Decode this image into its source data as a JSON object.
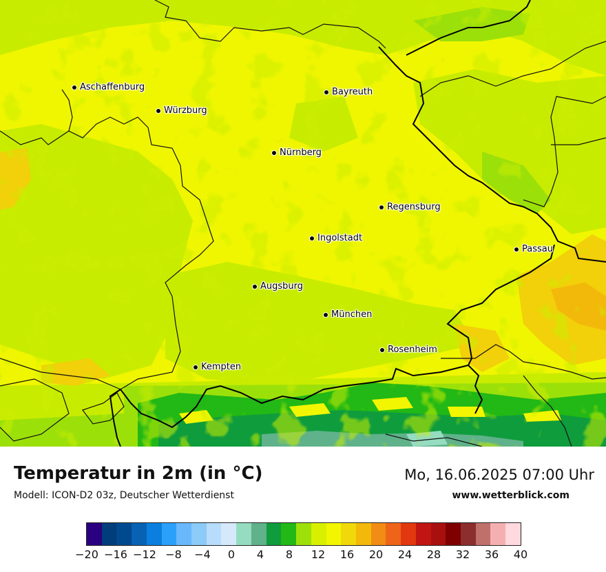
{
  "title": "Temperatur in 2m (in °C)",
  "model": "Modell: ICON-D2 03z, Deutscher Wetterdienst",
  "datetime": "Mo, 16.06.2025 07:00 Uhr",
  "website": "www.wetterblick.com",
  "cities": [
    {
      "name": "Aschaffenburg"
    },
    {
      "name": "Würzburg"
    },
    {
      "name": "Bayreuth"
    },
    {
      "name": "Nürnberg"
    },
    {
      "name": "Regensburg"
    },
    {
      "name": "Ingolstadt"
    },
    {
      "name": "Passau"
    },
    {
      "name": "Augsburg"
    },
    {
      "name": "München"
    },
    {
      "name": "Rosenheim"
    },
    {
      "name": "Kempten"
    }
  ],
  "legend": {
    "colors": [
      "#2a0080",
      "#003d7a",
      "#00498e",
      "#0862b4",
      "#0a7fe0",
      "#2ba0fa",
      "#6ab8fc",
      "#8ccaf8",
      "#b8dcfb",
      "#d6e9fb",
      "#95dcc0",
      "#5fb28a",
      "#0f9c3d",
      "#22b815",
      "#9ee00a",
      "#d8f000",
      "#f2f600",
      "#f0d80a",
      "#f2b90a",
      "#f18c14",
      "#ee6419",
      "#e2380f",
      "#c01512",
      "#a8100f",
      "#7e0000",
      "#8c2e2e",
      "#c0706b",
      "#f4b0b0",
      "#ffd9dd"
    ],
    "ticks": [
      "−20",
      "−16",
      "−12",
      "−8",
      "−4",
      "0",
      "4",
      "8",
      "12",
      "16",
      "20",
      "24",
      "28",
      "32",
      "36",
      "40"
    ]
  }
}
